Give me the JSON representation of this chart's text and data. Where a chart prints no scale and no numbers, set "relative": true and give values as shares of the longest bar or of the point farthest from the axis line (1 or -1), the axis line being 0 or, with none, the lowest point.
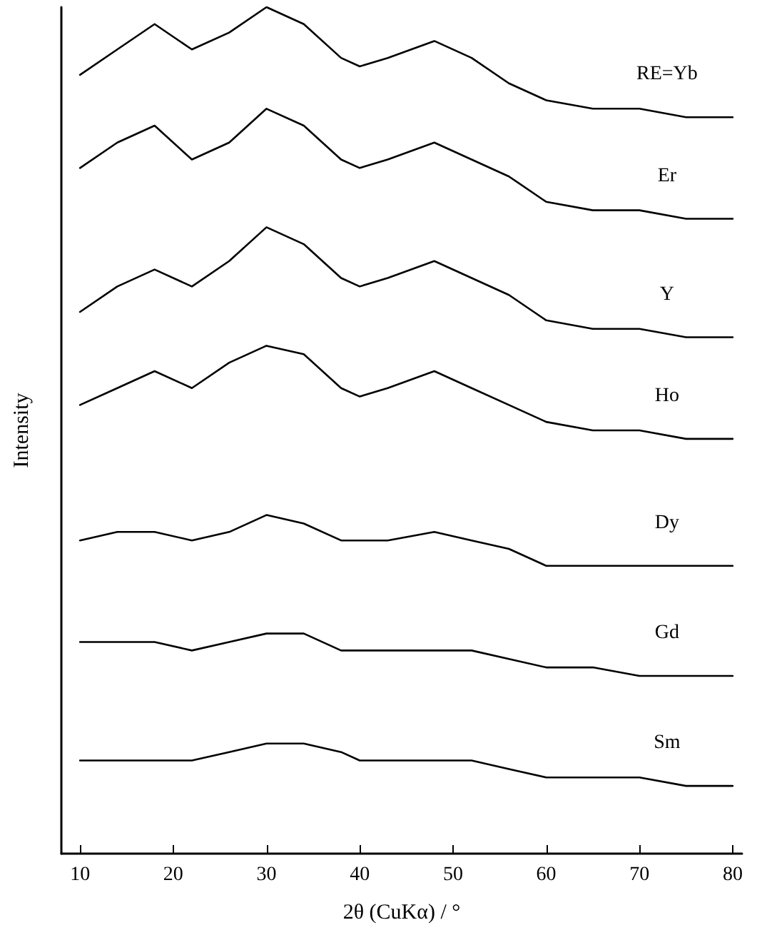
{
  "chart_data": {
    "type": "line",
    "relative": true,
    "xlabel": "2θ (CuKα) / °",
    "ylabel": "Intensity",
    "x": [
      10,
      14,
      18,
      22,
      26,
      30,
      34,
      38,
      40,
      43,
      48,
      52,
      56,
      60,
      65,
      70,
      75,
      80
    ],
    "xlim": [
      8,
      81
    ],
    "xticks": [
      10,
      20,
      30,
      40,
      50,
      60,
      70,
      80
    ],
    "grid": false,
    "legend": false,
    "marker": "none",
    "line_style": "solid",
    "series": [
      {
        "name": "RE=Yb",
        "color": "#000000",
        "values": [
          0.92,
          0.95,
          0.98,
          0.95,
          0.97,
          1.0,
          0.98,
          0.94,
          0.93,
          0.94,
          0.96,
          0.94,
          0.91,
          0.89,
          0.88,
          0.88,
          0.87,
          0.87
        ]
      },
      {
        "name": "Er",
        "color": "#000000",
        "values": [
          0.81,
          0.84,
          0.86,
          0.82,
          0.84,
          0.88,
          0.86,
          0.82,
          0.81,
          0.82,
          0.84,
          0.82,
          0.8,
          0.77,
          0.76,
          0.76,
          0.75,
          0.75
        ]
      },
      {
        "name": "Y",
        "color": "#000000",
        "values": [
          0.64,
          0.67,
          0.69,
          0.67,
          0.7,
          0.74,
          0.72,
          0.68,
          0.67,
          0.68,
          0.7,
          0.68,
          0.66,
          0.63,
          0.62,
          0.62,
          0.61,
          0.61
        ]
      },
      {
        "name": "Ho",
        "color": "#000000",
        "values": [
          0.53,
          0.55,
          0.57,
          0.55,
          0.58,
          0.6,
          0.59,
          0.55,
          0.54,
          0.55,
          0.57,
          0.55,
          0.53,
          0.51,
          0.5,
          0.5,
          0.49,
          0.49
        ]
      },
      {
        "name": "Dy",
        "color": "#000000",
        "values": [
          0.37,
          0.38,
          0.38,
          0.37,
          0.38,
          0.4,
          0.39,
          0.37,
          0.37,
          0.37,
          0.38,
          0.37,
          0.36,
          0.34,
          0.34,
          0.34,
          0.34,
          0.34
        ]
      },
      {
        "name": "Gd",
        "color": "#000000",
        "values": [
          0.25,
          0.25,
          0.25,
          0.24,
          0.25,
          0.26,
          0.26,
          0.24,
          0.24,
          0.24,
          0.24,
          0.24,
          0.23,
          0.22,
          0.22,
          0.21,
          0.21,
          0.21
        ]
      },
      {
        "name": "Sm",
        "color": "#000000",
        "values": [
          0.11,
          0.11,
          0.11,
          0.11,
          0.12,
          0.13,
          0.13,
          0.12,
          0.11,
          0.11,
          0.11,
          0.11,
          0.1,
          0.09,
          0.09,
          0.09,
          0.08,
          0.08
        ]
      }
    ]
  }
}
